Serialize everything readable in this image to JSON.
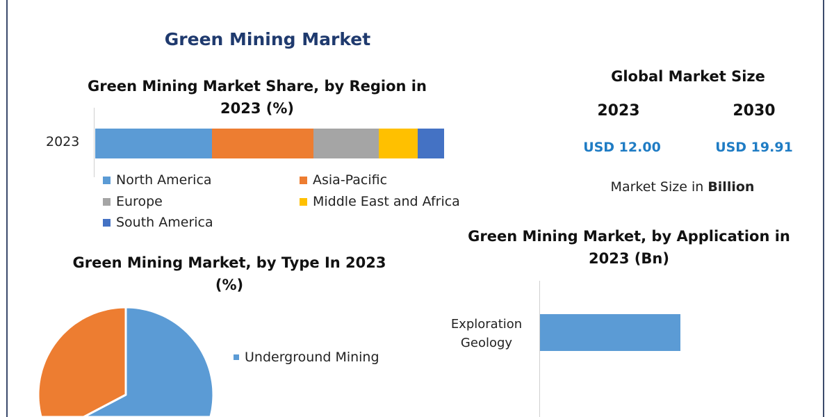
{
  "title": "Green Mining Market",
  "market_size": {
    "heading": "Global Market Size",
    "years": [
      "2023",
      "2030"
    ],
    "values": [
      "USD 12.00",
      "USD 19.91"
    ],
    "unit_prefix": "Market Size in ",
    "unit_bold": "Billion"
  },
  "colors": {
    "blue": "#5b9bd5",
    "orange": "#ed7d31",
    "gray": "#a5a5a5",
    "yellow": "#ffc000",
    "darkblue": "#4472c4",
    "title": "#1f3a6e",
    "usd": "#1f7cc4"
  },
  "chart_data": [
    {
      "type": "bar",
      "orientation": "horizontal-stacked",
      "title_line1": "Green Mining Market Share, by Region in",
      "title_line2": "2023 (%)",
      "categories": [
        "2023"
      ],
      "series": [
        {
          "name": "North America",
          "values": [
            33.5
          ],
          "color": "#5b9bd5"
        },
        {
          "name": "Asia-Pacific",
          "values": [
            29.0
          ],
          "color": "#ed7d31"
        },
        {
          "name": "Europe",
          "values": [
            18.7
          ],
          "color": "#a5a5a5"
        },
        {
          "name": "Middle East and Africa",
          "values": [
            11.2
          ],
          "color": "#ffc000"
        },
        {
          "name": "South America",
          "values": [
            7.6
          ],
          "color": "#4472c4"
        }
      ],
      "legend": "bottom"
    },
    {
      "type": "pie",
      "title_line1": "Green Mining Market, by Type In 2023",
      "title_line2": "(%)",
      "slices": [
        {
          "name": "Underground Mining",
          "value": 58,
          "color": "#5b9bd5"
        },
        {
          "value": 42,
          "color": "#ed7d31"
        }
      ],
      "legend": "right"
    },
    {
      "type": "bar",
      "orientation": "horizontal",
      "title_line1": "Green Mining Market, by Application in",
      "title_line2": "2023 (Bn)",
      "categories": [
        "Exploration\nGeology"
      ],
      "category_lines": [
        [
          "Exploration",
          "Geology"
        ]
      ],
      "values": [
        0.72
      ],
      "color": "#5b9bd5"
    }
  ]
}
